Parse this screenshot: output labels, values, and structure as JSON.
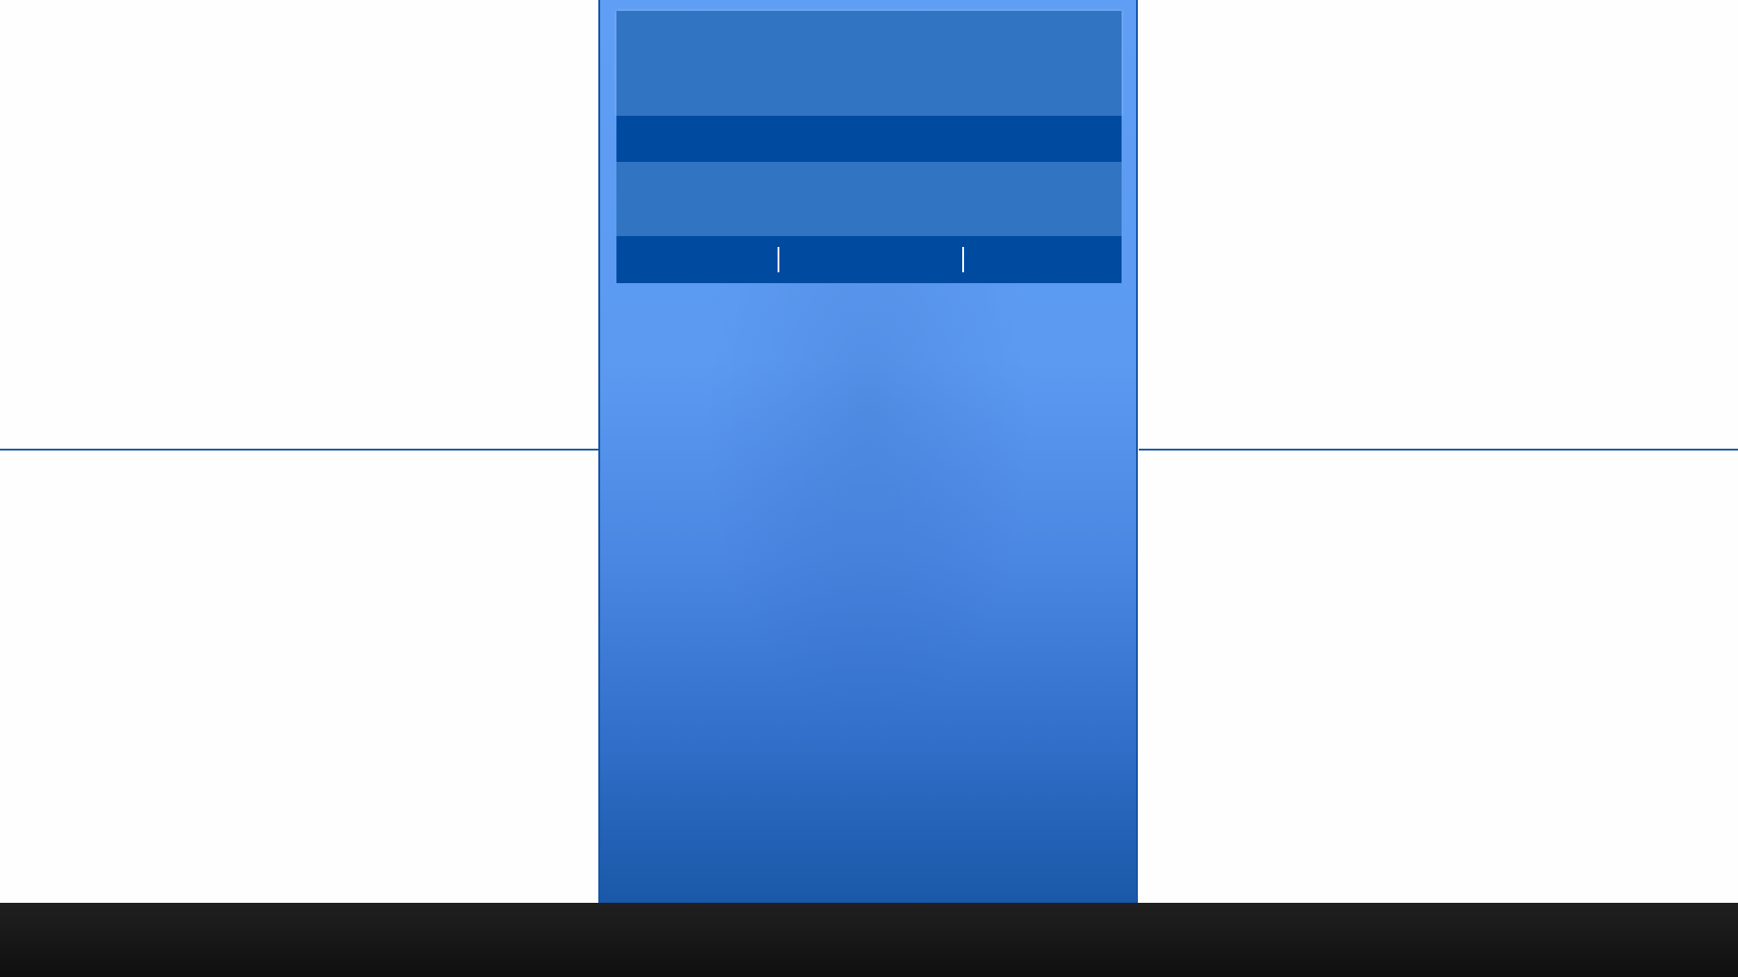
{
  "colors": {
    "background": "#fefefe",
    "divider_line": "#1a5aa5",
    "panel_top": "#5f9ef4",
    "panel_bottom": "#1a58a8",
    "panel_border": "#1753a8",
    "header_block": "#3174c2",
    "dark_band": "#004ba0",
    "separator": "#ffffff",
    "taskbar": "#161616"
  },
  "panel": {
    "header_block": {},
    "band_1": {},
    "mid_block": {},
    "band_2": {
      "separators": [
        "|",
        "|"
      ]
    }
  },
  "taskbar": {}
}
